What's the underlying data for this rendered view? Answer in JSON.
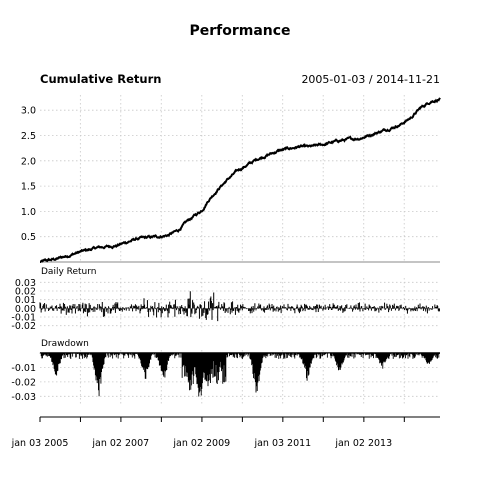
{
  "chart_data": [
    {
      "type": "line",
      "name": "Cumulative Return",
      "title": "Performance",
      "subtitle": "Cumulative Return",
      "date_range": "2005-01-03 / 2014-11-21",
      "x_range": [
        "2005-01-03",
        "2014-11-21"
      ],
      "ylim": [
        0,
        3.3
      ],
      "y_ticks": [
        0.5,
        1.0,
        1.5,
        2.0,
        2.5,
        3.0
      ],
      "y_tick_labels": [
        "0.5",
        "1.0",
        "1.5",
        "2.0",
        "2.5",
        "3.0"
      ],
      "grid": true,
      "x": [
        "2005-01-03",
        "2005-06-01",
        "2005-09-01",
        "2006-01-02",
        "2006-06-01",
        "2006-12-01",
        "2007-06-01",
        "2007-12-03",
        "2008-03-03",
        "2008-06-02",
        "2008-09-01",
        "2009-01-02",
        "2009-03-02",
        "2009-06-01",
        "2009-09-01",
        "2009-12-01",
        "2010-06-01",
        "2010-12-01",
        "2011-06-01",
        "2011-09-01",
        "2012-01-02",
        "2012-06-01",
        "2012-12-03",
        "2013-06-03",
        "2013-12-02",
        "2014-03-03",
        "2014-06-02",
        "2014-09-01",
        "2014-11-21"
      ],
      "values": [
        0.0,
        0.06,
        0.12,
        0.2,
        0.28,
        0.33,
        0.46,
        0.5,
        0.53,
        0.62,
        0.82,
        1.02,
        1.22,
        1.45,
        1.65,
        1.82,
        2.05,
        2.2,
        2.28,
        2.27,
        2.32,
        2.4,
        2.45,
        2.58,
        2.72,
        2.85,
        3.05,
        3.18,
        3.22
      ]
    },
    {
      "type": "bar",
      "name": "Daily Return",
      "subtitle": "Daily Return",
      "ylim": [
        -0.025,
        0.035
      ],
      "y_ticks": [
        -0.02,
        -0.01,
        0.0,
        0.01,
        0.02,
        0.03
      ],
      "y_tick_labels": [
        "-0.02",
        "-0.01",
        "0.00",
        "0.01",
        "0.02",
        "0.03"
      ]
    },
    {
      "type": "area",
      "name": "Drawdown",
      "subtitle": "Drawdown",
      "ylim": [
        -0.036,
        0.002
      ],
      "y_ticks": [
        -0.01,
        -0.02,
        -0.03
      ],
      "y_tick_labels": [
        "-0.01",
        "-0.02",
        "-0.03"
      ]
    }
  ],
  "x_axis": {
    "tick_labels": [
      "jan 03 2005",
      "jan 02 2007",
      "jan 02 2009",
      "jan 03 2011",
      "jan 02 2013"
    ],
    "tick_dates": [
      "2005-01-03",
      "2007-01-02",
      "2009-01-02",
      "2011-01-03",
      "2013-01-02"
    ]
  }
}
